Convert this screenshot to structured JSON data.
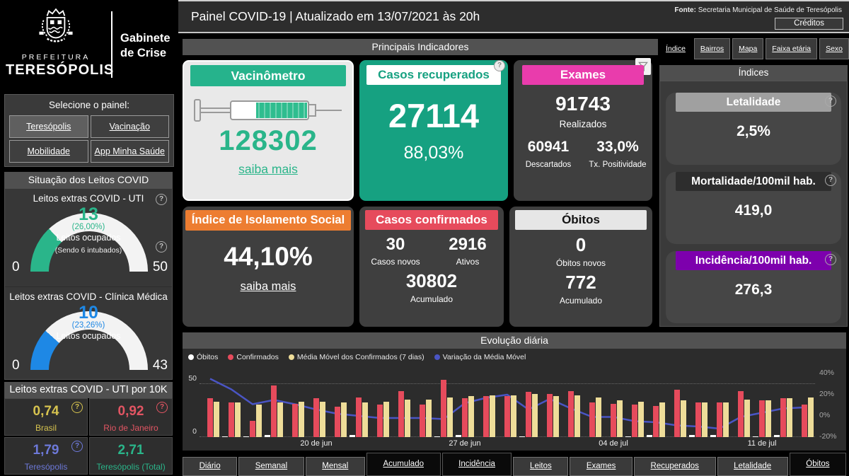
{
  "branding": {
    "prefeitura": "PREFEITURA",
    "city": "TERESÓPOLIS",
    "cabinet_line1": "Gabinete",
    "cabinet_line2": "de Crise"
  },
  "header": {
    "title": "Painel COVID-19 | Atualizado em 13/07/2021 às 20h",
    "fonte_label": "Fonte:",
    "fonte_value": " Secretaria Municipal de Saúde de Teresópolis",
    "credits_button": "Créditos"
  },
  "panel_selector": {
    "title": "Selecione o painel:",
    "buttons": [
      {
        "label": "Teresópolis",
        "active": true
      },
      {
        "label": "Vacinação",
        "active": false
      },
      {
        "label": "Mobilidade",
        "active": false
      },
      {
        "label": "App Minha Saúde",
        "active": false
      }
    ]
  },
  "leitos": {
    "section_title": "Situação dos Leitos COVID",
    "uti": {
      "title": "Leitos extras COVID - UTI",
      "value": "13",
      "pct": "(26,00%)",
      "label": "Leitos ocupados",
      "note": "(Sendo 6 intubados)",
      "min": "0",
      "max": "50",
      "color": "#2ab58a",
      "fraction": 0.26
    },
    "clinica": {
      "title": "Leitos extras COVID - Clínica Médica",
      "value": "10",
      "pct": "(23,26%)",
      "label": "Leitos ocupados",
      "min": "0",
      "max": "43",
      "color": "#1e88e5",
      "fraction": 0.2326
    },
    "per10k": {
      "section_title": "Leitos extras COVID - UTI por 10K",
      "items": [
        {
          "value": "0,74",
          "label": "Brasil",
          "color": "#d6c34f",
          "help": true
        },
        {
          "value": "0,92",
          "label": "Rio de Janeiro",
          "color": "#e25563",
          "help": true
        },
        {
          "value": "1,79",
          "label": "Teresópolis",
          "color": "#6d79d9",
          "help": true
        },
        {
          "value": "2,71",
          "label": "Teresópolis (Total)",
          "color": "#2ab58a",
          "help": false
        }
      ]
    }
  },
  "indicators": {
    "section_title": "Principais Indicadores",
    "vacinometro": {
      "title": "Vacinômetro",
      "value": "128302",
      "link": "saiba mais"
    },
    "recuperados": {
      "title": "Casos recuperados",
      "value": "27114",
      "pct": "88,03%"
    },
    "exames": {
      "title": "Exames",
      "realizados": "91743",
      "realizados_label": "Realizados",
      "descartados": "60941",
      "descartados_label": "Descartados",
      "positividade": "33,0%",
      "positividade_label": "Tx. Positividade"
    },
    "isolamento": {
      "title": "Índice de Isolamento Social",
      "value": "44,10%",
      "link": "saiba mais"
    },
    "confirmados": {
      "title": "Casos confirmados",
      "novos": "30",
      "novos_label": "Casos novos",
      "ativos": "2916",
      "ativos_label": "Ativos",
      "acumulado": "30802",
      "acumulado_label": "Acumulado"
    },
    "obitos": {
      "title": "Óbitos",
      "novos": "0",
      "novos_label": "Óbitos novos",
      "acumulado": "772",
      "acumulado_label": "Acumulado"
    }
  },
  "right_tabs": [
    {
      "label": "Índice",
      "active": true
    },
    {
      "label": "Bairros",
      "active": false
    },
    {
      "label": "Mapa",
      "active": false
    },
    {
      "label": "Faixa etária",
      "active": false
    },
    {
      "label": "Sexo",
      "active": false
    }
  ],
  "indices": {
    "section_title": "Índices",
    "cards": [
      {
        "title": "Letalidade",
        "value": "2,5%",
        "header_bg": "#a0a0a0",
        "header_color": "#ffffff"
      },
      {
        "title": "Mortalidade/100mil hab.",
        "value": "419,0",
        "header_bg": "#2d2d2d",
        "header_color": "#ffffff"
      },
      {
        "title": "Incidência/100mil hab.",
        "value": "276,3",
        "header_bg": "#7d00ad",
        "header_color": "#ffffff"
      }
    ]
  },
  "chart_data": {
    "type": "bar",
    "title": "Evolução diária",
    "x": [
      "15 de jun",
      "16 de jun",
      "17 de jun",
      "18 de jun",
      "19 de jun",
      "20 de jun",
      "21 de jun",
      "22 de jun",
      "23 de jun",
      "24 de jun",
      "25 de jun",
      "26 de jun",
      "27 de jun",
      "28 de jun",
      "29 de jun",
      "30 de jun",
      "01 de jul",
      "02 de jul",
      "03 de jul",
      "04 de jul",
      "05 de jul",
      "06 de jul",
      "07 de jul",
      "08 de jul",
      "09 de jul",
      "10 de jul",
      "11 de jul",
      "12 de jul",
      "13 de jul"
    ],
    "tick_labels": [
      "20 de jun",
      "27 de jun",
      "04 de jul",
      "11 de jul"
    ],
    "tick_indices": [
      5,
      12,
      19,
      26
    ],
    "left_axis": {
      "min": 0,
      "max": 50,
      "ticks": [
        "50",
        "0"
      ]
    },
    "right_axis": {
      "min": -20,
      "max": 40,
      "ticks": [
        "40%",
        "20%",
        "0%",
        "-20%"
      ]
    },
    "legend": [
      {
        "name": "Óbitos",
        "color": "#ffffff"
      },
      {
        "name": "Confirmados",
        "color": "#e64b5c"
      },
      {
        "name": "Média Móvel dos Confirmados (7 dias)",
        "color": "#eedd99"
      },
      {
        "name": "Variação da Média Móvel",
        "color": "#4a55c4"
      }
    ],
    "series": [
      {
        "name": "Óbitos",
        "type": "bar",
        "color": "#ffffff",
        "values": [
          0,
          1,
          1,
          2,
          0,
          0,
          0,
          2,
          0,
          0,
          0,
          1,
          2,
          0,
          0,
          1,
          0,
          0,
          0,
          0,
          1,
          2,
          0,
          2,
          2,
          0,
          1,
          2,
          0
        ]
      },
      {
        "name": "Confirmados",
        "type": "bar",
        "color": "#e64b5c",
        "values": [
          36,
          32,
          15,
          48,
          31,
          36,
          28,
          37,
          30,
          43,
          30,
          53,
          36,
          38,
          38,
          42,
          40,
          43,
          32,
          31,
          30,
          29,
          44,
          32,
          32,
          43,
          34,
          36,
          30
        ]
      },
      {
        "name": "Média Móvel dos Confirmados (7 dias)",
        "type": "bar",
        "color": "#eedd99",
        "values": [
          33,
          32,
          30,
          32,
          33,
          33,
          32,
          32,
          33,
          35,
          35,
          37,
          38,
          39,
          39,
          40,
          38,
          39,
          37,
          34,
          33,
          32,
          34,
          32,
          32,
          35,
          34,
          36,
          37
        ]
      },
      {
        "name": "Variação da Média Móvel",
        "type": "line",
        "color": "#4a55c4",
        "axis": "right",
        "values": [
          35,
          25,
          11,
          15,
          11,
          6,
          2,
          0,
          -2,
          -2,
          -2,
          -3,
          12,
          17,
          20,
          6,
          16,
          7,
          -1,
          -1,
          -5,
          -6,
          -9,
          -10,
          -12,
          -1,
          3,
          7,
          8
        ]
      }
    ]
  },
  "bottom_tabs": [
    {
      "label": "Diário",
      "dark": false
    },
    {
      "label": "Semanal",
      "dark": false
    },
    {
      "label": "Mensal",
      "dark": false
    },
    {
      "label": "Acumulado",
      "dark": true
    },
    {
      "label": "Incidência",
      "dark": true
    },
    {
      "label": "Leitos",
      "dark": false
    },
    {
      "label": "Exames",
      "dark": false
    },
    {
      "label": "Recuperados",
      "dark": false
    },
    {
      "label": "Letalidade",
      "dark": false
    },
    {
      "label": "Óbitos",
      "dark": true
    }
  ]
}
